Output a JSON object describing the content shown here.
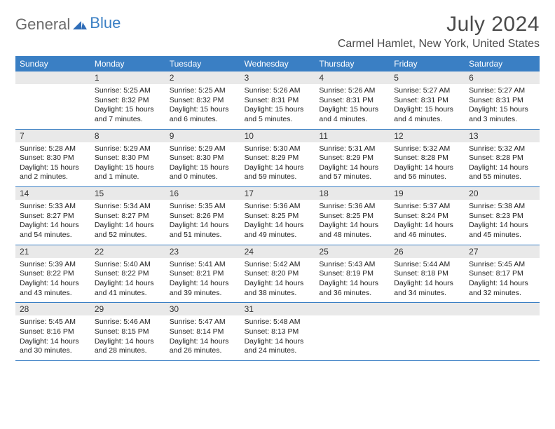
{
  "logo": {
    "general": "General",
    "blue": "Blue"
  },
  "title": "July 2024",
  "location": "Carmel Hamlet, New York, United States",
  "colors": {
    "header_bg": "#3a7fc4",
    "header_text": "#ffffff",
    "daynum_bg": "#e9e9e9",
    "border": "#3a7fc4",
    "body_text": "#222222",
    "page_bg": "#ffffff",
    "title_text": "#4a4a4a"
  },
  "dow": [
    "Sunday",
    "Monday",
    "Tuesday",
    "Wednesday",
    "Thursday",
    "Friday",
    "Saturday"
  ],
  "weeks": [
    [
      {
        "num": "",
        "sunrise": "",
        "sunset": "",
        "daylight": ""
      },
      {
        "num": "1",
        "sunrise": "Sunrise: 5:25 AM",
        "sunset": "Sunset: 8:32 PM",
        "daylight": "Daylight: 15 hours and 7 minutes."
      },
      {
        "num": "2",
        "sunrise": "Sunrise: 5:25 AM",
        "sunset": "Sunset: 8:32 PM",
        "daylight": "Daylight: 15 hours and 6 minutes."
      },
      {
        "num": "3",
        "sunrise": "Sunrise: 5:26 AM",
        "sunset": "Sunset: 8:31 PM",
        "daylight": "Daylight: 15 hours and 5 minutes."
      },
      {
        "num": "4",
        "sunrise": "Sunrise: 5:26 AM",
        "sunset": "Sunset: 8:31 PM",
        "daylight": "Daylight: 15 hours and 4 minutes."
      },
      {
        "num": "5",
        "sunrise": "Sunrise: 5:27 AM",
        "sunset": "Sunset: 8:31 PM",
        "daylight": "Daylight: 15 hours and 4 minutes."
      },
      {
        "num": "6",
        "sunrise": "Sunrise: 5:27 AM",
        "sunset": "Sunset: 8:31 PM",
        "daylight": "Daylight: 15 hours and 3 minutes."
      }
    ],
    [
      {
        "num": "7",
        "sunrise": "Sunrise: 5:28 AM",
        "sunset": "Sunset: 8:30 PM",
        "daylight": "Daylight: 15 hours and 2 minutes."
      },
      {
        "num": "8",
        "sunrise": "Sunrise: 5:29 AM",
        "sunset": "Sunset: 8:30 PM",
        "daylight": "Daylight: 15 hours and 1 minute."
      },
      {
        "num": "9",
        "sunrise": "Sunrise: 5:29 AM",
        "sunset": "Sunset: 8:30 PM",
        "daylight": "Daylight: 15 hours and 0 minutes."
      },
      {
        "num": "10",
        "sunrise": "Sunrise: 5:30 AM",
        "sunset": "Sunset: 8:29 PM",
        "daylight": "Daylight: 14 hours and 59 minutes."
      },
      {
        "num": "11",
        "sunrise": "Sunrise: 5:31 AM",
        "sunset": "Sunset: 8:29 PM",
        "daylight": "Daylight: 14 hours and 57 minutes."
      },
      {
        "num": "12",
        "sunrise": "Sunrise: 5:32 AM",
        "sunset": "Sunset: 8:28 PM",
        "daylight": "Daylight: 14 hours and 56 minutes."
      },
      {
        "num": "13",
        "sunrise": "Sunrise: 5:32 AM",
        "sunset": "Sunset: 8:28 PM",
        "daylight": "Daylight: 14 hours and 55 minutes."
      }
    ],
    [
      {
        "num": "14",
        "sunrise": "Sunrise: 5:33 AM",
        "sunset": "Sunset: 8:27 PM",
        "daylight": "Daylight: 14 hours and 54 minutes."
      },
      {
        "num": "15",
        "sunrise": "Sunrise: 5:34 AM",
        "sunset": "Sunset: 8:27 PM",
        "daylight": "Daylight: 14 hours and 52 minutes."
      },
      {
        "num": "16",
        "sunrise": "Sunrise: 5:35 AM",
        "sunset": "Sunset: 8:26 PM",
        "daylight": "Daylight: 14 hours and 51 minutes."
      },
      {
        "num": "17",
        "sunrise": "Sunrise: 5:36 AM",
        "sunset": "Sunset: 8:25 PM",
        "daylight": "Daylight: 14 hours and 49 minutes."
      },
      {
        "num": "18",
        "sunrise": "Sunrise: 5:36 AM",
        "sunset": "Sunset: 8:25 PM",
        "daylight": "Daylight: 14 hours and 48 minutes."
      },
      {
        "num": "19",
        "sunrise": "Sunrise: 5:37 AM",
        "sunset": "Sunset: 8:24 PM",
        "daylight": "Daylight: 14 hours and 46 minutes."
      },
      {
        "num": "20",
        "sunrise": "Sunrise: 5:38 AM",
        "sunset": "Sunset: 8:23 PM",
        "daylight": "Daylight: 14 hours and 45 minutes."
      }
    ],
    [
      {
        "num": "21",
        "sunrise": "Sunrise: 5:39 AM",
        "sunset": "Sunset: 8:22 PM",
        "daylight": "Daylight: 14 hours and 43 minutes."
      },
      {
        "num": "22",
        "sunrise": "Sunrise: 5:40 AM",
        "sunset": "Sunset: 8:22 PM",
        "daylight": "Daylight: 14 hours and 41 minutes."
      },
      {
        "num": "23",
        "sunrise": "Sunrise: 5:41 AM",
        "sunset": "Sunset: 8:21 PM",
        "daylight": "Daylight: 14 hours and 39 minutes."
      },
      {
        "num": "24",
        "sunrise": "Sunrise: 5:42 AM",
        "sunset": "Sunset: 8:20 PM",
        "daylight": "Daylight: 14 hours and 38 minutes."
      },
      {
        "num": "25",
        "sunrise": "Sunrise: 5:43 AM",
        "sunset": "Sunset: 8:19 PM",
        "daylight": "Daylight: 14 hours and 36 minutes."
      },
      {
        "num": "26",
        "sunrise": "Sunrise: 5:44 AM",
        "sunset": "Sunset: 8:18 PM",
        "daylight": "Daylight: 14 hours and 34 minutes."
      },
      {
        "num": "27",
        "sunrise": "Sunrise: 5:45 AM",
        "sunset": "Sunset: 8:17 PM",
        "daylight": "Daylight: 14 hours and 32 minutes."
      }
    ],
    [
      {
        "num": "28",
        "sunrise": "Sunrise: 5:45 AM",
        "sunset": "Sunset: 8:16 PM",
        "daylight": "Daylight: 14 hours and 30 minutes."
      },
      {
        "num": "29",
        "sunrise": "Sunrise: 5:46 AM",
        "sunset": "Sunset: 8:15 PM",
        "daylight": "Daylight: 14 hours and 28 minutes."
      },
      {
        "num": "30",
        "sunrise": "Sunrise: 5:47 AM",
        "sunset": "Sunset: 8:14 PM",
        "daylight": "Daylight: 14 hours and 26 minutes."
      },
      {
        "num": "31",
        "sunrise": "Sunrise: 5:48 AM",
        "sunset": "Sunset: 8:13 PM",
        "daylight": "Daylight: 14 hours and 24 minutes."
      },
      {
        "num": "",
        "sunrise": "",
        "sunset": "",
        "daylight": ""
      },
      {
        "num": "",
        "sunrise": "",
        "sunset": "",
        "daylight": ""
      },
      {
        "num": "",
        "sunrise": "",
        "sunset": "",
        "daylight": ""
      }
    ]
  ]
}
